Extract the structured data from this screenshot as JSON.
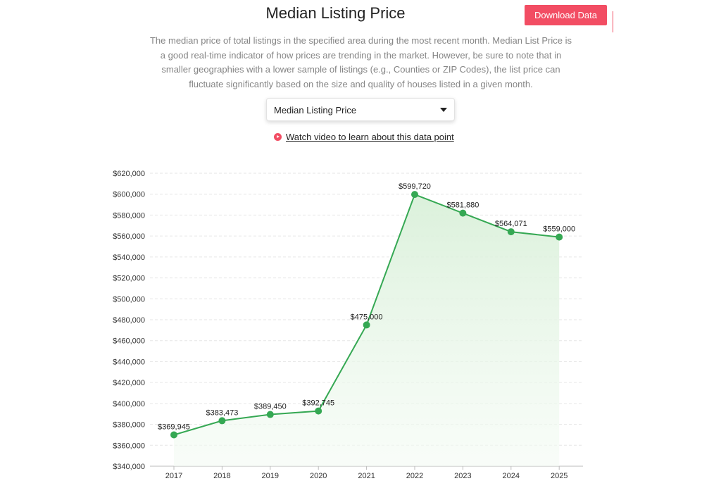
{
  "header": {
    "title": "Median Listing Price",
    "download_label": "Download Data"
  },
  "description": "The median price of total listings in the specified area during the most recent month. Median List Price is a good real-time indicator of how prices are trending in the market. However, be sure to note that in smaller geographies with a lower sample of listings (e.g., Counties or ZIP Codes), the list price can fluctuate significantly based on the size and quality of houses listed in a given month.",
  "metric_select": {
    "selected": "Median Listing Price"
  },
  "video_link": {
    "label": "Watch video to learn about this data point"
  },
  "colors": {
    "accent": "#f24d63",
    "line": "#35a853",
    "area": "#e3f4e3",
    "grid": "#e6e6e6"
  },
  "chart_data": {
    "type": "line",
    "title": "",
    "xlabel": "",
    "ylabel": "",
    "categories": [
      "2017",
      "2018",
      "2019",
      "2020",
      "2021",
      "2022",
      "2023",
      "2024",
      "2025"
    ],
    "series": [
      {
        "name": "Median Listing Price",
        "values": [
          369945,
          383473,
          389450,
          392745,
          475000,
          599720,
          581880,
          564071,
          559000
        ]
      }
    ],
    "data_labels": [
      "$369,945",
      "$383,473",
      "$389,450",
      "$392,745",
      "$475,000",
      "$599,720",
      "$581,880",
      "$564,071",
      "$559,000"
    ],
    "ylim": [
      340000,
      620000
    ],
    "yticks": [
      340000,
      360000,
      380000,
      400000,
      420000,
      440000,
      460000,
      480000,
      500000,
      520000,
      540000,
      560000,
      580000,
      600000,
      620000
    ],
    "ytick_labels": [
      "$340,000",
      "$360,000",
      "$380,000",
      "$400,000",
      "$420,000",
      "$440,000",
      "$460,000",
      "$480,000",
      "$500,000",
      "$520,000",
      "$540,000",
      "$560,000",
      "$580,000",
      "$600,000",
      "$620,000"
    ],
    "grid": true,
    "area_fill": true,
    "legend": "none"
  }
}
